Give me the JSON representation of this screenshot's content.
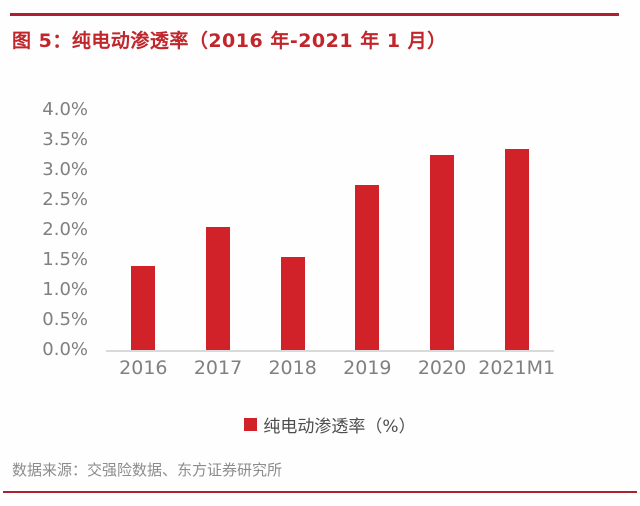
{
  "page": {
    "title": "图 5：纯电动渗透率（2016 年-2021 年 1 月）",
    "source": "数据来源：交强险数据、东方证券研究所"
  },
  "chart_data": {
    "type": "bar",
    "title": "纯电动渗透率（2016 年-2021 年 1 月）",
    "categories": [
      "2016",
      "2017",
      "2018",
      "2019",
      "2020",
      "2021M1"
    ],
    "series": [
      {
        "name": "纯电动渗透率（%）",
        "values": [
          1.4,
          2.05,
          1.55,
          2.75,
          3.25,
          3.35
        ]
      }
    ],
    "unit": "%",
    "ylim": [
      0,
      4.0
    ],
    "ytick_step": 0.5,
    "ytick_labels": [
      "0.0%",
      "0.5%",
      "1.0%",
      "1.5%",
      "2.0%",
      "2.5%",
      "3.0%",
      "3.5%",
      "4.0%"
    ],
    "grid": false,
    "legend": {
      "label": "纯电动渗透率（%）",
      "position": "bottom",
      "marker": "square"
    }
  },
  "colors": {
    "accent_red": "#d02228",
    "title_red": "#c0262c",
    "rule_red": "#ac2030",
    "axis_text": "#808080",
    "legend_text": "#4d4d4d",
    "source_text": "#8c8c8c",
    "axis_line": "#d9d9d9"
  }
}
